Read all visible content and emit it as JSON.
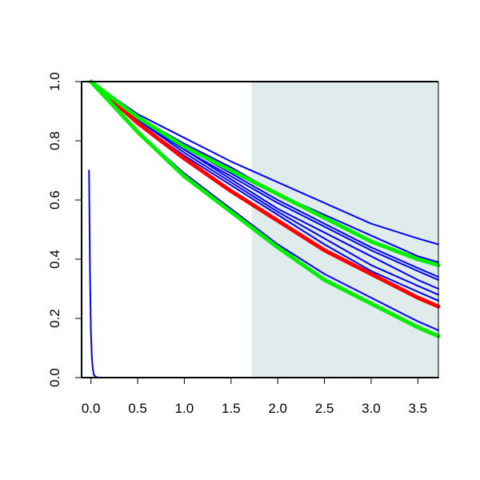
{
  "chart_data": {
    "type": "line",
    "title": "",
    "xlabel": "",
    "ylabel": "",
    "xlim": [
      -0.1,
      3.72
    ],
    "ylim": [
      0.0,
      1.0
    ],
    "x_ticks": [
      "0.0",
      "0.5",
      "1.0",
      "1.5",
      "2.0",
      "2.5",
      "3.0",
      "3.5"
    ],
    "y_ticks": [
      "0.0",
      "0.2",
      "0.4",
      "0.6",
      "0.8",
      "1.0"
    ],
    "shaded_region": {
      "x_from": 1.72,
      "x_to": 3.72,
      "color": "#e0ecec"
    },
    "grid": false,
    "legend": "none",
    "colors": {
      "red": "#ff0000",
      "green": "#00ee00",
      "blue": "#0000ff"
    },
    "x": [
      0.0,
      0.5,
      1.0,
      1.5,
      2.0,
      2.5,
      3.0,
      3.5,
      3.72
    ],
    "series": [
      {
        "color": "red",
        "values": [
          1.0,
          0.86,
          0.74,
          0.63,
          0.53,
          0.43,
          0.35,
          0.27,
          0.24
        ]
      },
      {
        "color": "green",
        "values": [
          1.0,
          0.88,
          0.78,
          0.7,
          0.62,
          0.54,
          0.46,
          0.4,
          0.38
        ]
      },
      {
        "color": "green",
        "values": [
          1.0,
          0.83,
          0.68,
          0.56,
          0.44,
          0.33,
          0.25,
          0.17,
          0.14
        ]
      },
      {
        "color": "blue",
        "values": [
          1.0,
          0.89,
          0.81,
          0.73,
          0.66,
          0.59,
          0.52,
          0.47,
          0.45
        ]
      },
      {
        "color": "blue",
        "values": [
          1.0,
          0.88,
          0.79,
          0.71,
          0.62,
          0.55,
          0.48,
          0.41,
          0.39
        ]
      },
      {
        "color": "blue",
        "values": [
          1.0,
          0.88,
          0.78,
          0.69,
          0.6,
          0.52,
          0.44,
          0.37,
          0.34
        ]
      },
      {
        "color": "blue",
        "values": [
          1.0,
          0.88,
          0.77,
          0.68,
          0.59,
          0.51,
          0.43,
          0.36,
          0.33
        ]
      },
      {
        "color": "blue",
        "values": [
          1.0,
          0.87,
          0.77,
          0.67,
          0.57,
          0.49,
          0.41,
          0.33,
          0.3
        ]
      },
      {
        "color": "blue",
        "values": [
          1.0,
          0.87,
          0.76,
          0.66,
          0.56,
          0.47,
          0.38,
          0.31,
          0.28
        ]
      },
      {
        "color": "blue",
        "values": [
          1.0,
          0.86,
          0.75,
          0.65,
          0.55,
          0.45,
          0.36,
          0.29,
          0.26
        ]
      },
      {
        "color": "blue",
        "values": [
          1.0,
          0.83,
          0.69,
          0.57,
          0.45,
          0.35,
          0.27,
          0.19,
          0.16
        ]
      },
      {
        "color": "blue",
        "x": [
          -0.02,
          -0.01,
          0.0,
          0.01,
          0.02,
          0.03,
          0.05,
          0.08,
          3.72
        ],
        "values": [
          0.7,
          0.35,
          0.15,
          0.07,
          0.03,
          0.01,
          0.003,
          0.0,
          0.0
        ]
      }
    ]
  }
}
